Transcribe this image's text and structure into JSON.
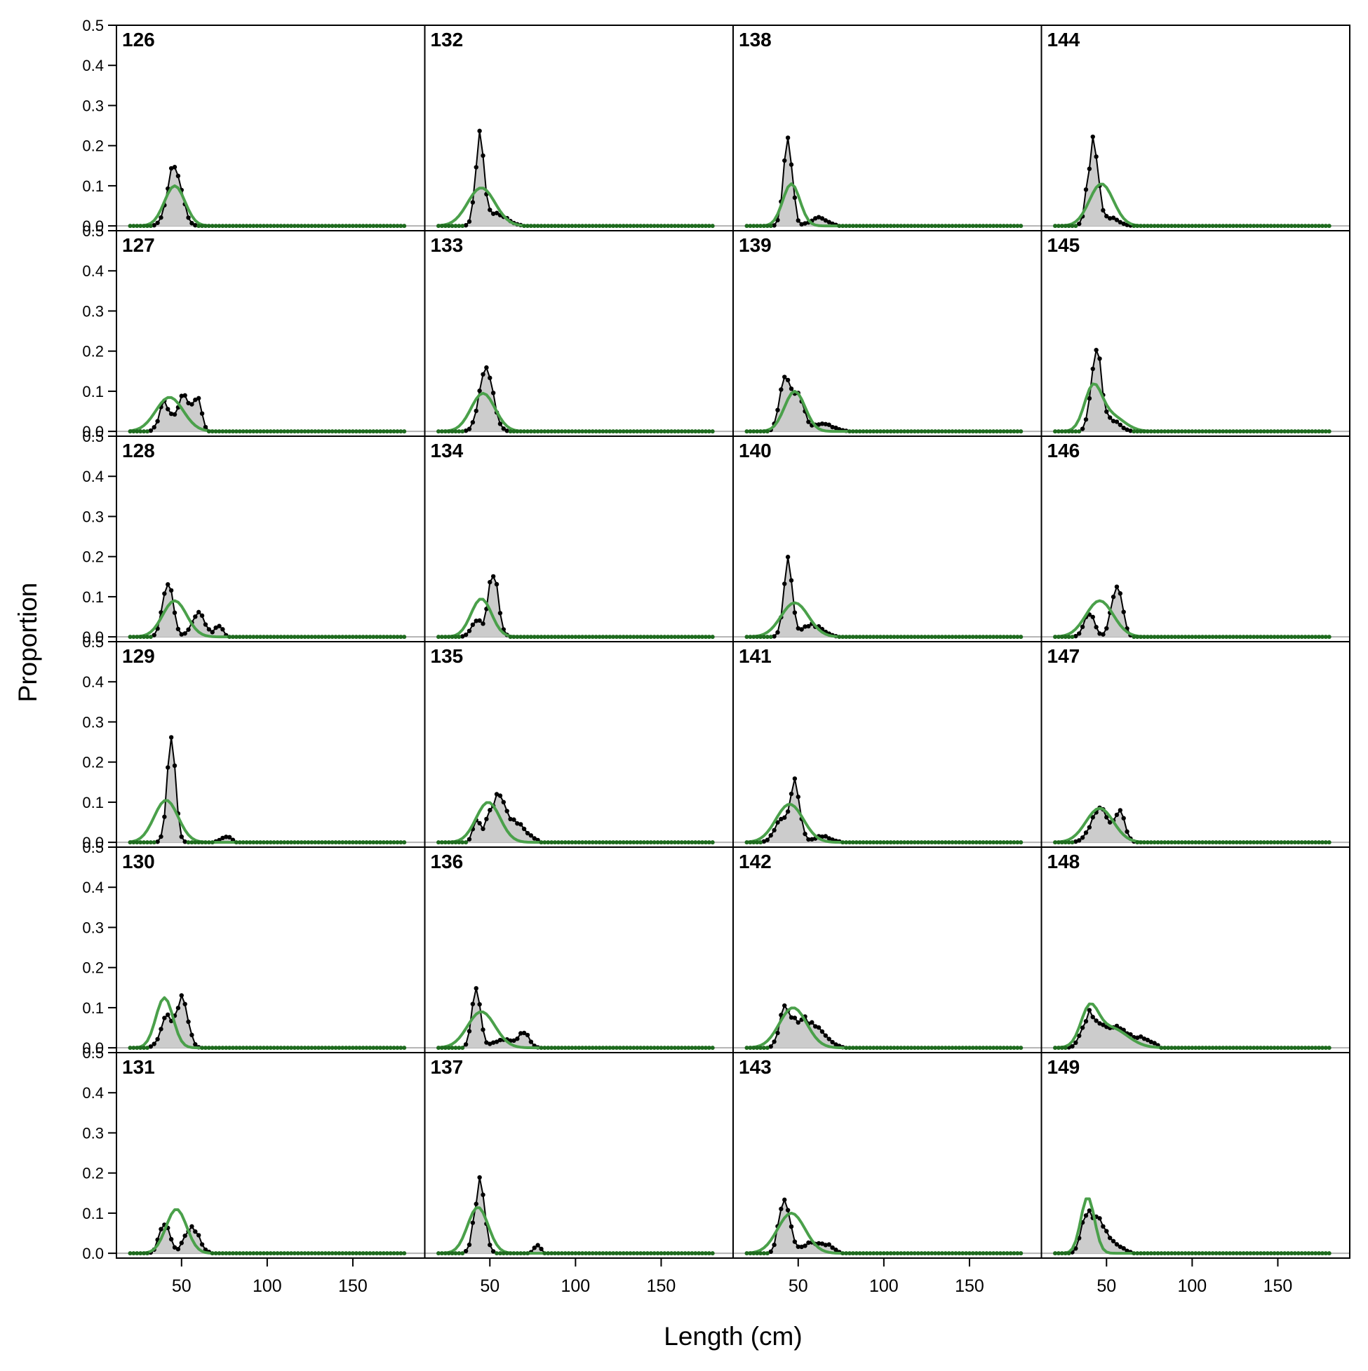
{
  "chart_data": {
    "type": "line",
    "layout": "faceted grid, 6 rows x 4 columns",
    "xlabel": "Length (cm)",
    "ylabel": "Proportion",
    "xlim": [
      12,
      192
    ],
    "ylim": [
      -0.012,
      0.5
    ],
    "x_ticks": [
      50,
      100,
      150
    ],
    "y_ticks": [
      0.0,
      0.1,
      0.2,
      0.3,
      0.4,
      0.5
    ],
    "y_tick_labels": [
      "0.0",
      "0.1",
      "0.2",
      "0.3",
      "0.4",
      "0.5"
    ],
    "bins": {
      "start": 20,
      "end": 180,
      "step": 2
    },
    "grid": false,
    "legend": "none",
    "colors": {
      "observed": "#000000",
      "observed_fill": "#cccccc",
      "expected": "#4aa04a",
      "zero_line": "#b3b3b3",
      "expected_points": "#1f6b1f"
    },
    "series_note": "observed = black points/line with grey fill; expected = green line",
    "panels": [
      {
        "label": "126",
        "observed_peaks": [
          [
            46,
            0.155,
            4
          ]
        ],
        "expected_peaks": [
          [
            46,
            0.1,
            6
          ]
        ],
        "observed_max_len": 64
      },
      {
        "label": "127",
        "observed_peaks": [
          [
            40,
            0.07,
            3
          ],
          [
            52,
            0.09,
            4
          ],
          [
            60,
            0.07,
            2
          ]
        ],
        "expected_peaks": [
          [
            43,
            0.085,
            8
          ]
        ],
        "observed_max_len": 72
      },
      {
        "label": "128",
        "observed_peaks": [
          [
            42,
            0.14,
            3
          ],
          [
            60,
            0.055,
            4
          ],
          [
            72,
            0.03,
            2
          ]
        ],
        "expected_peaks": [
          [
            46,
            0.09,
            7
          ]
        ],
        "observed_max_len": 78
      },
      {
        "label": "129",
        "observed_peaks": [
          [
            44,
            0.235,
            2.5
          ],
          [
            76,
            0.015,
            3
          ]
        ],
        "expected_peaks": [
          [
            41,
            0.105,
            7
          ]
        ],
        "observed_max_len": 80
      },
      {
        "label": "130",
        "observed_peaks": [
          [
            42,
            0.075,
            4
          ],
          [
            51,
            0.12,
            3
          ]
        ],
        "expected_peaks": [
          [
            40,
            0.125,
            5
          ]
        ],
        "observed_max_len": 70
      },
      {
        "label": "131",
        "observed_peaks": [
          [
            40,
            0.075,
            3
          ],
          [
            56,
            0.07,
            4
          ]
        ],
        "expected_peaks": [
          [
            47,
            0.11,
            6
          ]
        ],
        "observed_max_len": 74
      },
      {
        "label": "132",
        "observed_peaks": [
          [
            44,
            0.205,
            2.5
          ],
          [
            54,
            0.03,
            6
          ]
        ],
        "expected_peaks": [
          [
            45,
            0.095,
            8
          ]
        ],
        "observed_max_len": 70
      },
      {
        "label": "133",
        "observed_peaks": [
          [
            48,
            0.155,
            4
          ]
        ],
        "expected_peaks": [
          [
            46,
            0.095,
            7
          ]
        ],
        "observed_max_len": 78
      },
      {
        "label": "134",
        "observed_peaks": [
          [
            42,
            0.04,
            3
          ],
          [
            52,
            0.155,
            3
          ]
        ],
        "expected_peaks": [
          [
            45,
            0.095,
            6
          ]
        ],
        "observed_max_len": 78
      },
      {
        "label": "135",
        "observed_peaks": [
          [
            42,
            0.05,
            2
          ],
          [
            54,
            0.105,
            5
          ],
          [
            66,
            0.04,
            6
          ]
        ],
        "expected_peaks": [
          [
            49,
            0.1,
            7
          ]
        ],
        "observed_max_len": 78
      },
      {
        "label": "136",
        "observed_peaks": [
          [
            42,
            0.16,
            2.5
          ],
          [
            58,
            0.02,
            6
          ],
          [
            70,
            0.035,
            3
          ]
        ],
        "expected_peaks": [
          [
            45,
            0.09,
            8
          ]
        ],
        "observed_max_len": 80
      },
      {
        "label": "137",
        "observed_peaks": [
          [
            44,
            0.17,
            3
          ],
          [
            78,
            0.02,
            2
          ]
        ],
        "expected_peaks": [
          [
            43,
            0.115,
            6
          ]
        ],
        "observed_max_len": 80
      },
      {
        "label": "138",
        "observed_peaks": [
          [
            44,
            0.23,
            2.5
          ],
          [
            62,
            0.02,
            5
          ]
        ],
        "expected_peaks": [
          [
            46,
            0.105,
            5
          ]
        ],
        "observed_max_len": 72
      },
      {
        "label": "139",
        "observed_peaks": [
          [
            42,
            0.135,
            3
          ],
          [
            50,
            0.1,
            3
          ],
          [
            64,
            0.02,
            6
          ]
        ],
        "expected_peaks": [
          [
            48,
            0.1,
            6
          ]
        ],
        "observed_max_len": 80
      },
      {
        "label": "140",
        "observed_peaks": [
          [
            44,
            0.185,
            2.5
          ],
          [
            58,
            0.03,
            6
          ]
        ],
        "expected_peaks": [
          [
            48,
            0.085,
            8
          ]
        ],
        "observed_max_len": 80
      },
      {
        "label": "141",
        "observed_peaks": [
          [
            40,
            0.05,
            4
          ],
          [
            48,
            0.135,
            3
          ],
          [
            64,
            0.015,
            5
          ]
        ],
        "expected_peaks": [
          [
            45,
            0.095,
            8
          ]
        ],
        "observed_max_len": 80
      },
      {
        "label": "142",
        "observed_peaks": [
          [
            42,
            0.09,
            3
          ],
          [
            52,
            0.07,
            6
          ],
          [
            64,
            0.03,
            5
          ]
        ],
        "expected_peaks": [
          [
            47,
            0.1,
            8
          ]
        ],
        "observed_max_len": 80
      },
      {
        "label": "143",
        "observed_peaks": [
          [
            42,
            0.15,
            3
          ],
          [
            58,
            0.025,
            6
          ],
          [
            68,
            0.015,
            3
          ]
        ],
        "expected_peaks": [
          [
            46,
            0.1,
            8
          ]
        ],
        "observed_max_len": 80
      },
      {
        "label": "144",
        "observed_peaks": [
          [
            42,
            0.2,
            3
          ],
          [
            52,
            0.02,
            5
          ]
        ],
        "expected_peaks": [
          [
            47,
            0.105,
            7
          ]
        ],
        "observed_max_len": 72
      },
      {
        "label": "145",
        "observed_peaks": [
          [
            44,
            0.195,
            3
          ],
          [
            52,
            0.03,
            5
          ]
        ],
        "expected_peaks": [
          [
            42,
            0.1,
            5
          ],
          [
            52,
            0.04,
            8
          ]
        ],
        "observed_max_len": 78
      },
      {
        "label": "146",
        "observed_peaks": [
          [
            40,
            0.06,
            3
          ],
          [
            56,
            0.14,
            3
          ]
        ],
        "expected_peaks": [
          [
            46,
            0.09,
            8
          ]
        ],
        "observed_max_len": 78
      },
      {
        "label": "147",
        "observed_peaks": [
          [
            46,
            0.085,
            5
          ],
          [
            58,
            0.07,
            3
          ]
        ],
        "expected_peaks": [
          [
            46,
            0.085,
            8
          ]
        ],
        "observed_max_len": 70
      },
      {
        "label": "148",
        "observed_peaks": [
          [
            40,
            0.075,
            4
          ],
          [
            54,
            0.055,
            8
          ],
          [
            72,
            0.02,
            5
          ]
        ],
        "expected_peaks": [
          [
            40,
            0.085,
            5
          ],
          [
            52,
            0.05,
            10
          ]
        ],
        "observed_max_len": 80
      },
      {
        "label": "149",
        "observed_peaks": [
          [
            38,
            0.09,
            3
          ],
          [
            46,
            0.08,
            4
          ],
          [
            56,
            0.02,
            4
          ]
        ],
        "expected_peaks": [
          [
            39,
            0.14,
            4
          ]
        ],
        "observed_max_len": 80
      }
    ]
  }
}
